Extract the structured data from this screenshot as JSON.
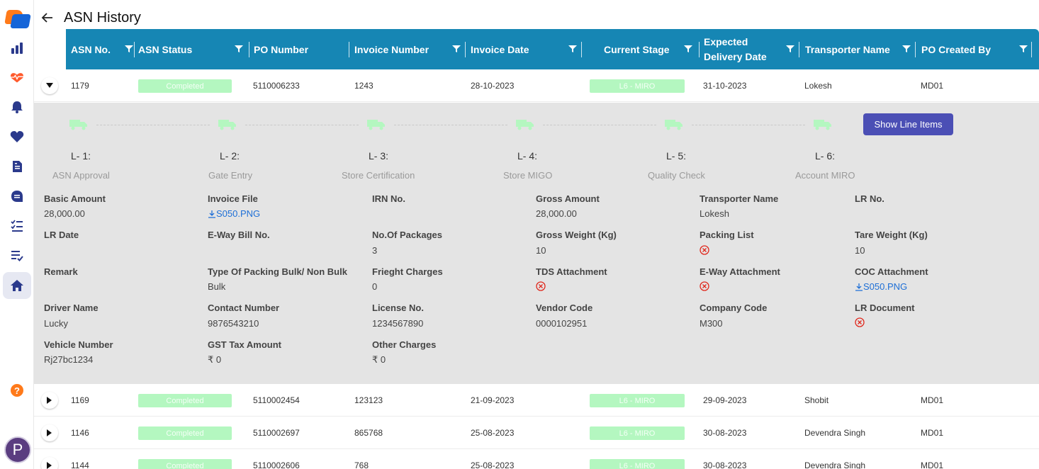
{
  "page": {
    "title": "ASN History"
  },
  "sidebar": {
    "icons": [
      "logo",
      "bar-chart-icon",
      "heart-pulse-icon",
      "bell-icon",
      "heart-icon",
      "document-icon",
      "chat-document-icon",
      "checklist-icon",
      "list-check-icon",
      "home-icon",
      "help-icon"
    ],
    "avatar_initial": "P",
    "active": "home-icon"
  },
  "table": {
    "headers": [
      "ASN No.",
      "ASN Status",
      "PO Number",
      "Invoice Number",
      "Invoice Date",
      "Current Stage",
      "Expected Delivery Date",
      "Transporter Name",
      "PO Created By"
    ],
    "rows": [
      {
        "asn": "1179",
        "status": "Completed",
        "po": "5110006233",
        "invoice": "1243",
        "invoice_date": "28-10-2023",
        "stage": "L6 - MIRO",
        "expected": "31-10-2023",
        "transporter": "Lokesh",
        "created_by": "MD01"
      },
      {
        "asn": "1169",
        "status": "Completed",
        "po": "5110002454",
        "invoice": "123123",
        "invoice_date": "21-09-2023",
        "stage": "L6 - MIRO",
        "expected": "29-09-2023",
        "transporter": "Shobit",
        "created_by": "MD01"
      },
      {
        "asn": "1146",
        "status": "Completed",
        "po": "5110002697",
        "invoice": "865768",
        "invoice_date": "25-08-2023",
        "stage": "L6 - MIRO",
        "expected": "30-08-2023",
        "transporter": "Devendra Singh",
        "created_by": "MD01"
      },
      {
        "asn": "1144",
        "status": "Completed",
        "po": "5110002606",
        "invoice": "768",
        "invoice_date": "25-08-2023",
        "stage": "L6 - MIRO",
        "expected": "30-08-2023",
        "transporter": "Devendra Singh",
        "created_by": "MD01"
      }
    ]
  },
  "detail": {
    "show_line_items": "Show Line Items",
    "levels": [
      {
        "code": "L- 1:",
        "name": "ASN Approval"
      },
      {
        "code": "L- 2:",
        "name": "Gate Entry"
      },
      {
        "code": "L- 3:",
        "name": "Store Certification"
      },
      {
        "code": "L- 4:",
        "name": "Store MIGO"
      },
      {
        "code": "L- 5:",
        "name": "Quality Check"
      },
      {
        "code": "L- 6:",
        "name": "Account MIRO"
      }
    ],
    "fields": {
      "basic_amount": {
        "label": "Basic Amount",
        "value": "28,000.00"
      },
      "invoice_file": {
        "label": "Invoice File",
        "value": "S050.PNG"
      },
      "irn_no": {
        "label": "IRN No.",
        "value": ""
      },
      "gross_amount": {
        "label": "Gross Amount",
        "value": "28,000.00"
      },
      "transporter_name": {
        "label": "Transporter Name",
        "value": "Lokesh"
      },
      "lr_no": {
        "label": "LR No.",
        "value": ""
      },
      "lr_date": {
        "label": "LR Date",
        "value": ""
      },
      "eway_bill": {
        "label": "E-Way Bill No.",
        "value": ""
      },
      "no_packages": {
        "label": "No.Of Packages",
        "value": "3"
      },
      "gross_weight": {
        "label": "Gross Weight (Kg)",
        "value": "10"
      },
      "packing_list": {
        "label": "Packing List",
        "value": ""
      },
      "tare_weight": {
        "label": "Tare Weight (Kg)",
        "value": "10"
      },
      "remark": {
        "label": "Remark",
        "value": ""
      },
      "packing_type": {
        "label": "Type Of Packing Bulk/ Non Bulk",
        "value": "Bulk"
      },
      "frieght": {
        "label": "Frieght Charges",
        "value": "0"
      },
      "tds": {
        "label": "TDS Attachment",
        "value": ""
      },
      "eway_attach": {
        "label": "E-Way Attachment",
        "value": ""
      },
      "coc": {
        "label": "COC Attachment",
        "value": "S050.PNG"
      },
      "driver": {
        "label": "Driver Name",
        "value": "Lucky"
      },
      "contact": {
        "label": "Contact Number",
        "value": "9876543210"
      },
      "license": {
        "label": "License No.",
        "value": "1234567890"
      },
      "vendor": {
        "label": "Vendor Code",
        "value": "0000102951"
      },
      "company": {
        "label": "Company Code",
        "value": "M300"
      },
      "lr_doc": {
        "label": "LR Document",
        "value": ""
      },
      "vehicle": {
        "label": "Vehicle Number",
        "value": "Rj27bc1234"
      },
      "gst": {
        "label": "GST Tax Amount",
        "value": "₹ 0"
      },
      "other": {
        "label": "Other Charges",
        "value": "₹ 0"
      }
    }
  },
  "colors": {
    "header_bg": "#1686b4",
    "pill_bg": "#b4f7c0",
    "button_bg": "#4b4fb5",
    "detail_bg": "#e4e4e4",
    "link": "#1e6fd6",
    "error": "#e0261b"
  }
}
